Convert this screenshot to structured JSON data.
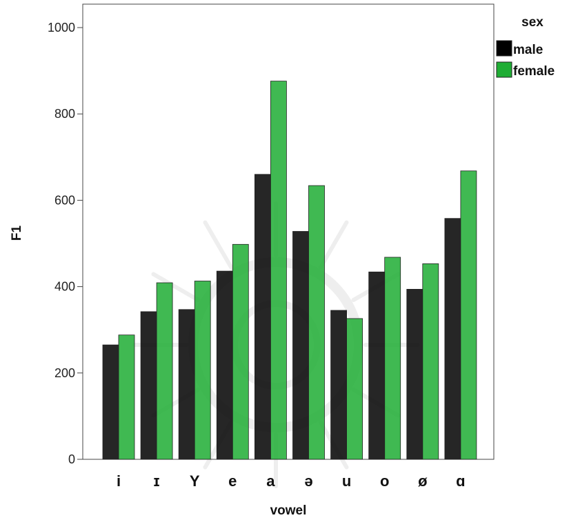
{
  "chart_data": {
    "type": "bar",
    "categories": [
      "i",
      "ɪ",
      "Y",
      "e",
      "a",
      "ə",
      "u",
      "o",
      "ø",
      "ɑ"
    ],
    "series": [
      {
        "name": "male",
        "color": "#000000",
        "values": [
          265,
          342,
          347,
          436,
          660,
          528,
          345,
          434,
          394,
          558
        ]
      },
      {
        "name": "female",
        "color": "#1fad34",
        "values": [
          288,
          409,
          413,
          498,
          876,
          634,
          326,
          468,
          453,
          668
        ]
      }
    ],
    "title": "",
    "xlabel": "vowel",
    "ylabel": "F1",
    "ylim": [
      0,
      1000
    ],
    "yticks": [
      0,
      200,
      400,
      600,
      800,
      1000
    ],
    "legend": {
      "title": "sex",
      "placement": "right"
    },
    "grid": false,
    "watermark": "decorative-mandala"
  }
}
